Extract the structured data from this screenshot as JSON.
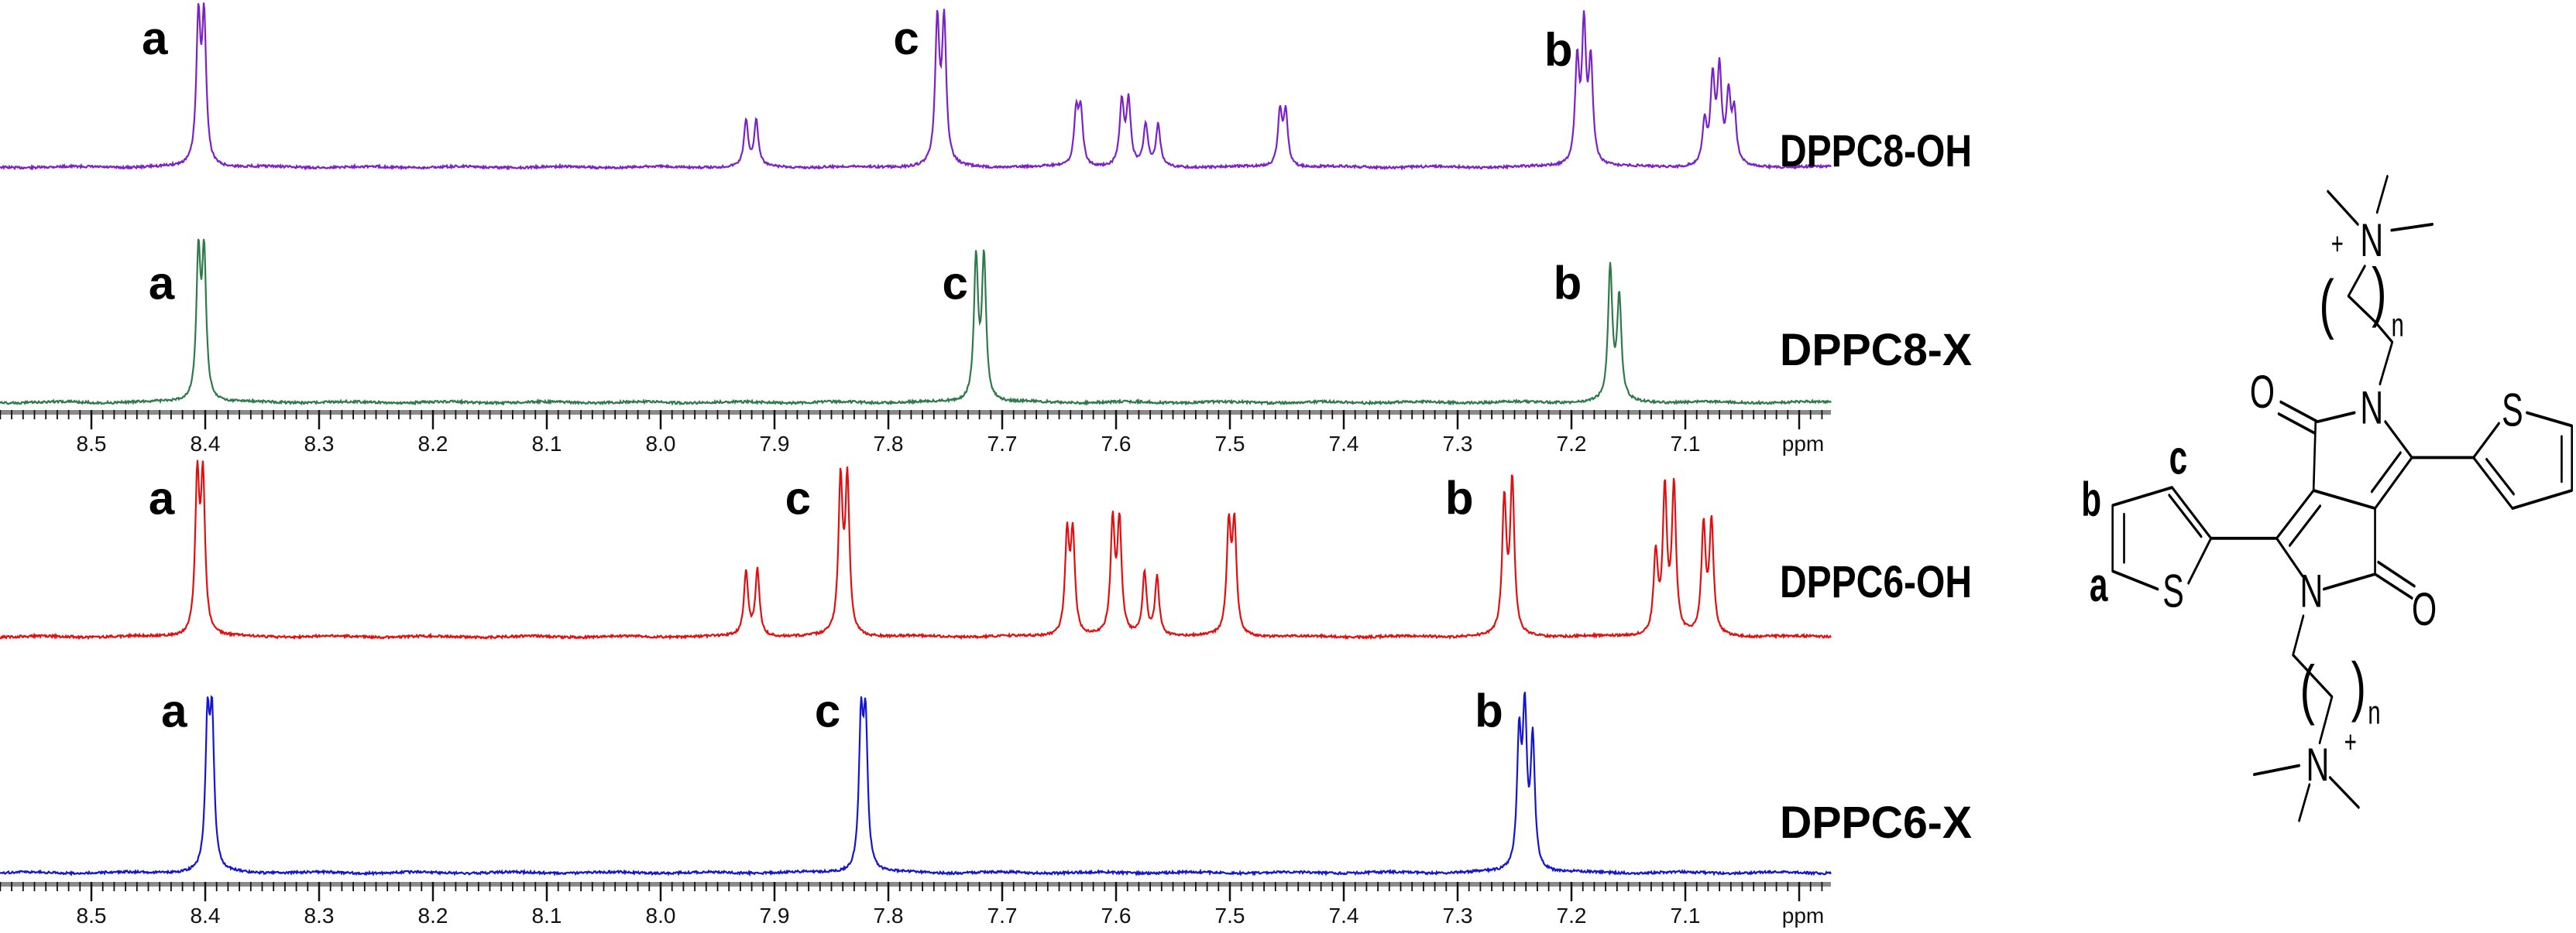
{
  "chart_data": {
    "type": "line",
    "title": "",
    "xlabel": "ppm",
    "ylabel": "",
    "xlim": [
      8.58,
      6.97
    ],
    "x_ticks": [
      8.5,
      8.4,
      8.3,
      8.2,
      8.1,
      8.0,
      7.9,
      7.8,
      7.7,
      7.6,
      7.5,
      7.4,
      7.3,
      7.2,
      7.1
    ],
    "x_tick_labels": [
      "8.5",
      "8.4",
      "8.3",
      "8.2",
      "8.1",
      "8.0",
      "7.9",
      "7.8",
      "7.7",
      "7.6",
      "7.5",
      "7.4",
      "7.3",
      "7.2",
      "7.1"
    ],
    "grid": false,
    "intensity_units": "relative",
    "series": [
      {
        "name": "DPPC8-OH",
        "color": "#7b22c4",
        "peaks": [
          [
            8.406,
            0.85
          ],
          [
            8.401,
            0.85
          ],
          [
            7.925,
            0.27
          ],
          [
            7.916,
            0.27
          ],
          [
            7.757,
            0.85
          ],
          [
            7.751,
            0.85
          ],
          [
            7.635,
            0.32
          ],
          [
            7.631,
            0.32
          ],
          [
            7.595,
            0.38
          ],
          [
            7.589,
            0.38
          ],
          [
            7.574,
            0.25
          ],
          [
            7.563,
            0.25
          ],
          [
            7.456,
            0.32
          ],
          [
            7.451,
            0.32
          ],
          [
            7.195,
            0.6
          ],
          [
            7.189,
            0.8
          ],
          [
            7.183,
            0.6
          ],
          [
            7.083,
            0.25
          ],
          [
            7.076,
            0.5
          ],
          [
            7.07,
            0.55
          ],
          [
            7.062,
            0.4
          ],
          [
            7.057,
            0.3
          ]
        ],
        "peak_labels": [
          {
            "text": "a",
            "ppm": 8.433,
            "y": 0.68
          },
          {
            "text": "c",
            "ppm": 7.773,
            "y": 0.68
          },
          {
            "text": "b",
            "ppm": 7.199,
            "y": 0.61
          }
        ]
      },
      {
        "name": "DPPC8-X",
        "color": "#2f7a4a",
        "peaks": [
          [
            8.406,
            0.85
          ],
          [
            8.401,
            0.85
          ],
          [
            7.723,
            0.85
          ],
          [
            7.716,
            0.85
          ],
          [
            7.166,
            0.8
          ],
          [
            7.158,
            0.62
          ]
        ],
        "peak_labels": [
          {
            "text": "a",
            "ppm": 8.427,
            "y": 0.62
          },
          {
            "text": "c",
            "ppm": 7.73,
            "y": 0.62
          },
          {
            "text": "b",
            "ppm": 7.191,
            "y": 0.62
          }
        ]
      },
      {
        "name": "DPPC6-OH",
        "color": "#e01010",
        "peaks": [
          [
            8.407,
            0.85
          ],
          [
            8.402,
            0.85
          ],
          [
            7.925,
            0.36
          ],
          [
            7.915,
            0.37
          ],
          [
            7.842,
            0.85
          ],
          [
            7.836,
            0.85
          ],
          [
            7.643,
            0.55
          ],
          [
            7.638,
            0.55
          ],
          [
            7.603,
            0.62
          ],
          [
            7.597,
            0.62
          ],
          [
            7.575,
            0.35
          ],
          [
            7.564,
            0.33
          ],
          [
            7.501,
            0.6
          ],
          [
            7.496,
            0.6
          ],
          [
            7.259,
            0.75
          ],
          [
            7.252,
            0.85
          ],
          [
            7.126,
            0.45
          ],
          [
            7.118,
            0.8
          ],
          [
            7.11,
            0.82
          ],
          [
            7.084,
            0.6
          ],
          [
            7.077,
            0.62
          ]
        ],
        "peak_labels": [
          {
            "text": "a",
            "ppm": 8.427,
            "y": 0.69
          },
          {
            "text": "c",
            "ppm": 7.868,
            "y": 0.69
          },
          {
            "text": "b",
            "ppm": 7.286,
            "y": 0.69
          }
        ]
      },
      {
        "name": "DPPC6-X",
        "color": "#1515d0",
        "peaks": [
          [
            8.398,
            0.8
          ],
          [
            8.394,
            0.8
          ],
          [
            7.824,
            0.8
          ],
          [
            7.82,
            0.8
          ],
          [
            7.246,
            0.72
          ],
          [
            7.241,
            0.85
          ],
          [
            7.234,
            0.72
          ]
        ],
        "peak_labels": [
          {
            "text": "a",
            "ppm": 8.416,
            "y": 0.82
          },
          {
            "text": "c",
            "ppm": 7.842,
            "y": 0.82
          },
          {
            "text": "b",
            "ppm": 7.26,
            "y": 0.82
          }
        ]
      }
    ]
  },
  "structure": {
    "atom_O": "O",
    "atom_N": "N",
    "atom_S": "S",
    "charge": "+",
    "repeat": "n",
    "open_paren": "(",
    "close_paren": ")",
    "proton_a": "a",
    "proton_b": "b",
    "proton_c": "c"
  }
}
